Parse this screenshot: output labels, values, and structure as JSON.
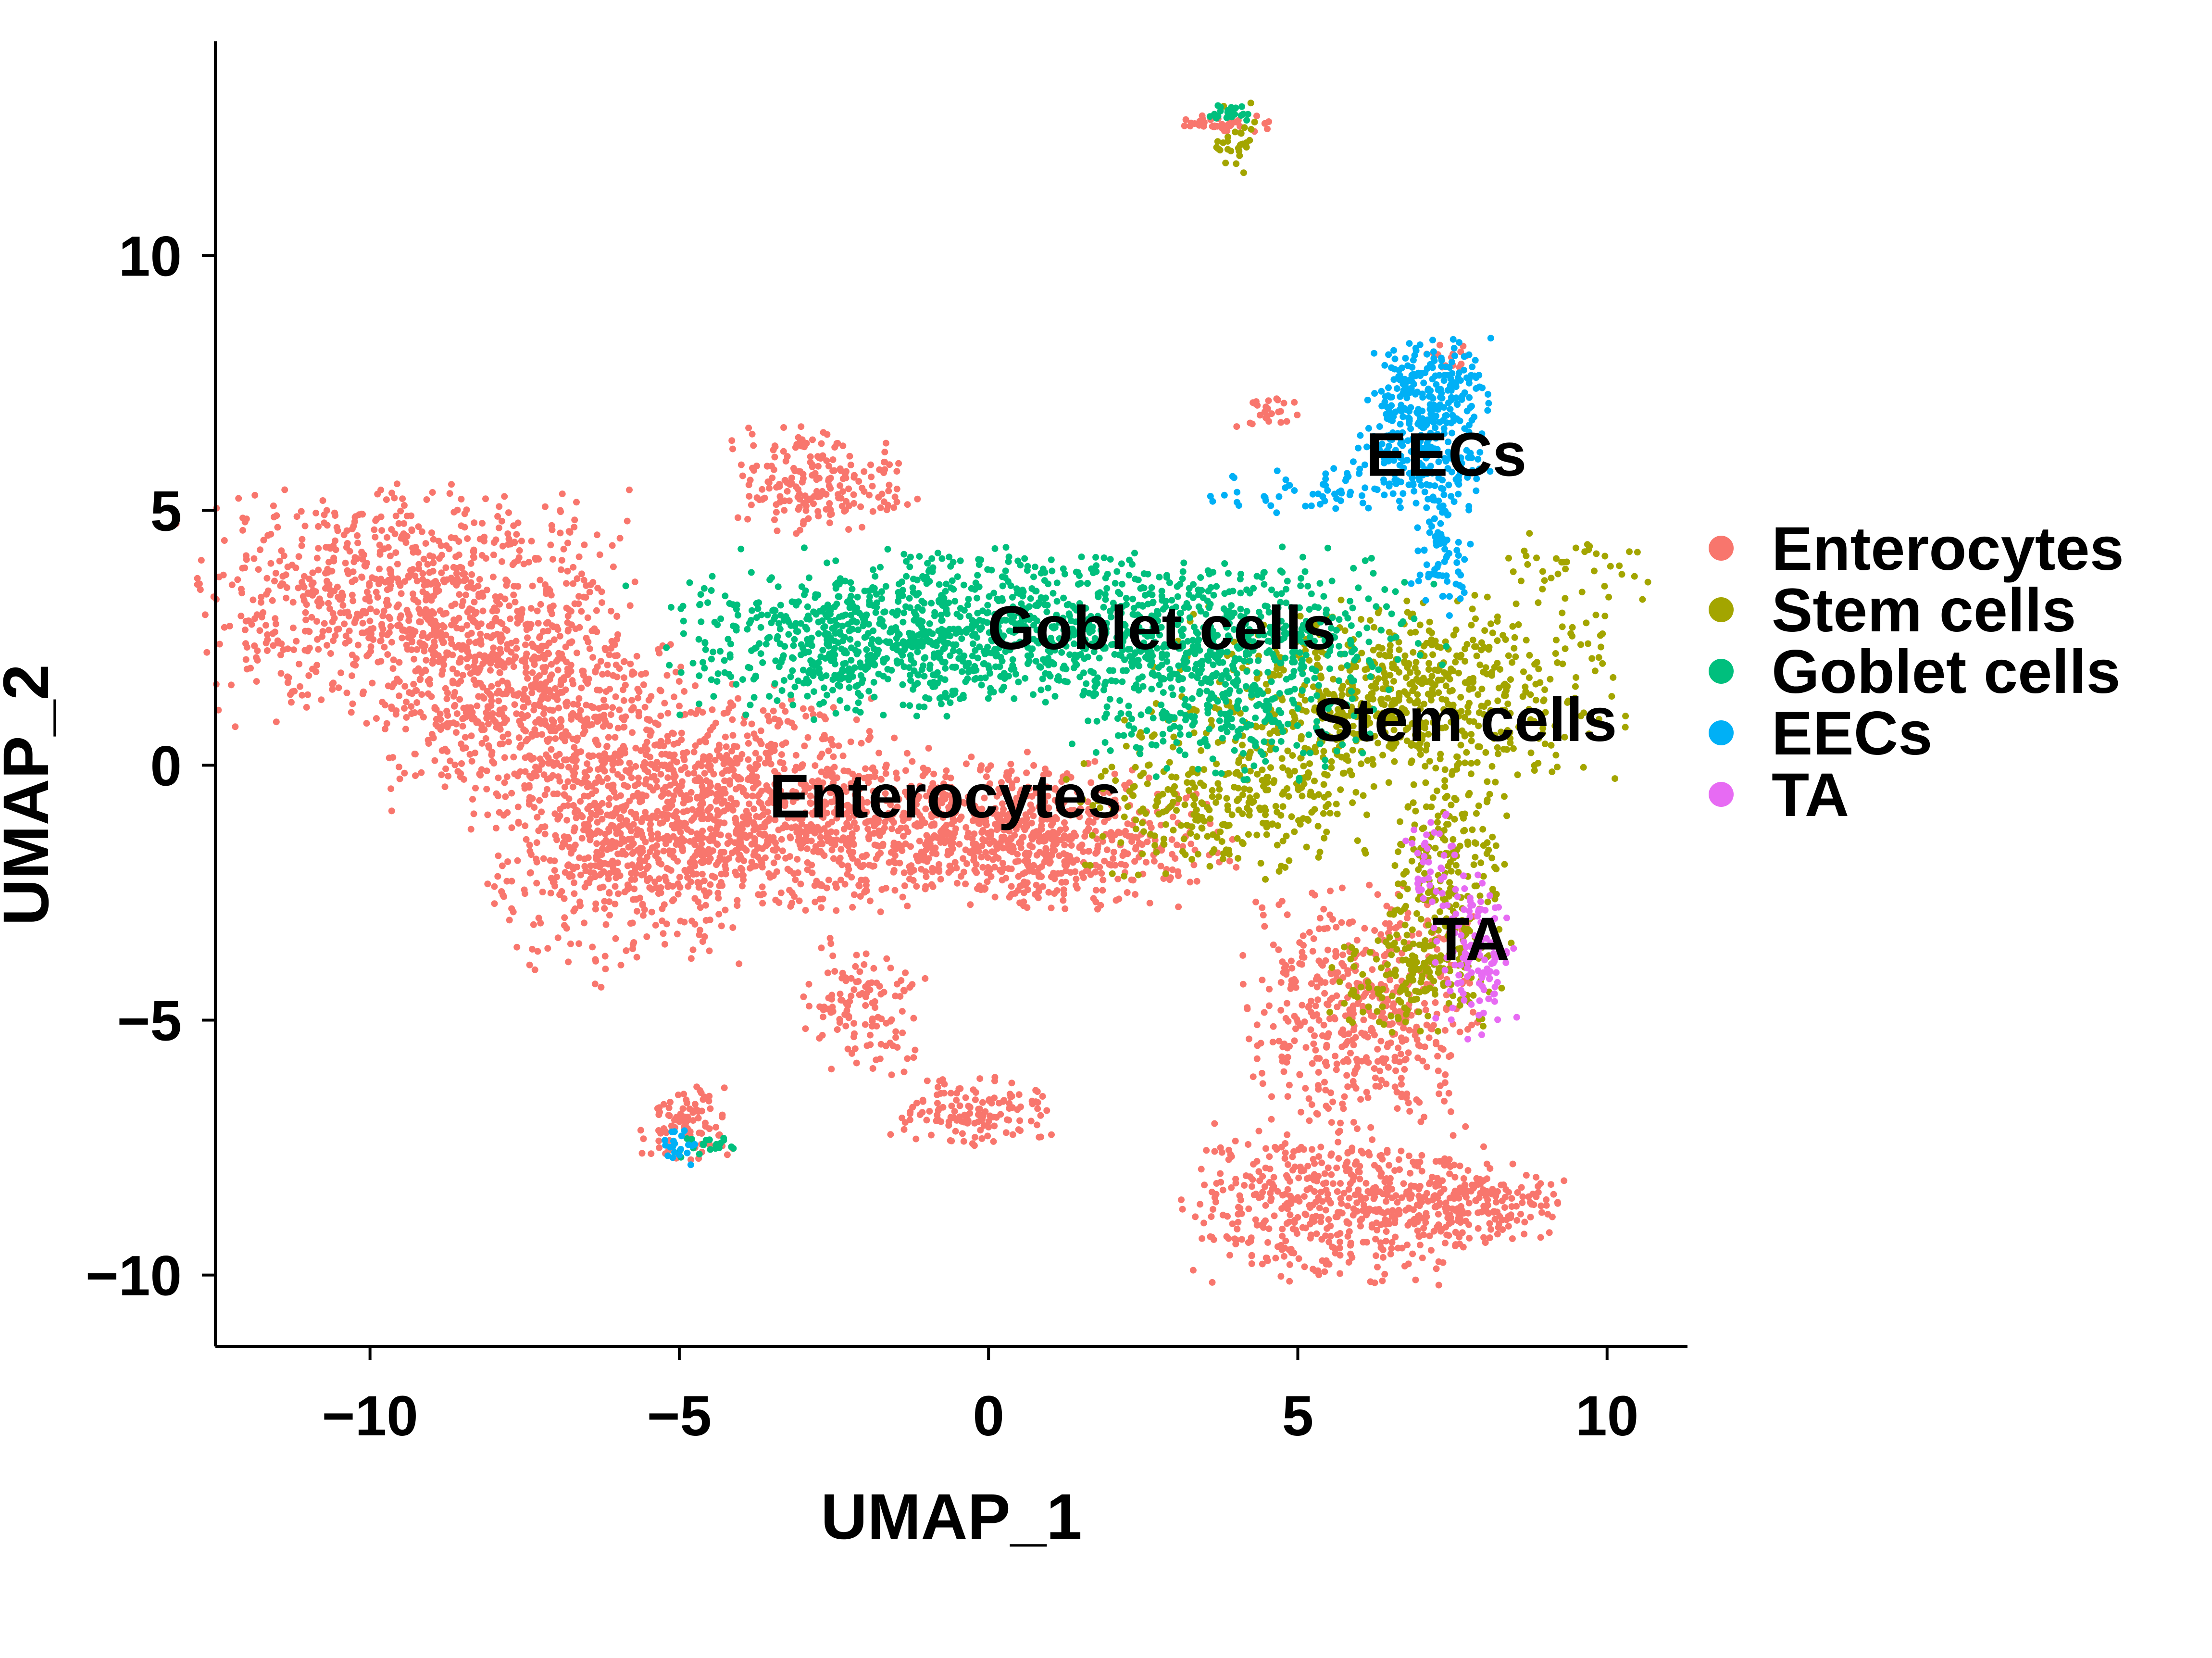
{
  "chart_data": {
    "type": "scatter",
    "title": "",
    "xlabel": "UMAP_1",
    "ylabel": "UMAP_2",
    "xlim": [
      -12.5,
      11.3
    ],
    "ylim": [
      -11.4,
      14.2
    ],
    "x_ticks": [
      -10,
      -5,
      0,
      5,
      10
    ],
    "x_tick_labels": [
      "−10",
      "−5",
      "0",
      "5",
      "10"
    ],
    "y_ticks": [
      -10,
      -5,
      0,
      5,
      10
    ],
    "y_tick_labels": [
      "−10",
      "−5",
      "0",
      "5",
      "10"
    ],
    "grid": false,
    "legend_position": "right",
    "series": [
      {
        "name": "Enterocytes",
        "color": "#F8766D",
        "regions": [
          {
            "cx": -9.3,
            "cy": 3.1,
            "rx": 2.0,
            "ry": 1.4,
            "n": 900
          },
          {
            "cx": -7.4,
            "cy": 1.2,
            "rx": 1.4,
            "ry": 1.4,
            "n": 600
          },
          {
            "cx": -6.0,
            "cy": -1.6,
            "rx": 1.2,
            "ry": 1.4,
            "n": 500
          },
          {
            "cx": -4.2,
            "cy": -0.6,
            "rx": 1.6,
            "ry": 1.3,
            "n": 600
          },
          {
            "cx": -1.5,
            "cy": -1.3,
            "rx": 2.2,
            "ry": 0.9,
            "n": 700
          },
          {
            "cx": 1.2,
            "cy": -1.5,
            "rx": 1.6,
            "ry": 0.8,
            "n": 400
          },
          {
            "cx": -2.7,
            "cy": 5.6,
            "rx": 0.9,
            "ry": 0.6,
            "n": 200
          },
          {
            "cx": -2.0,
            "cy": -4.8,
            "rx": 0.6,
            "ry": 0.9,
            "n": 120
          },
          {
            "cx": -0.2,
            "cy": -6.8,
            "rx": 0.8,
            "ry": 0.4,
            "n": 140
          },
          {
            "cx": -4.9,
            "cy": -7.0,
            "rx": 0.5,
            "ry": 0.5,
            "n": 90
          },
          {
            "cx": 6.0,
            "cy": -4.8,
            "rx": 1.1,
            "ry": 1.4,
            "n": 500
          },
          {
            "cx": 5.6,
            "cy": -8.6,
            "rx": 1.5,
            "ry": 0.9,
            "n": 500
          },
          {
            "cx": 7.9,
            "cy": -8.6,
            "rx": 0.8,
            "ry": 0.5,
            "n": 180
          },
          {
            "cx": 3.8,
            "cy": 12.6,
            "rx": 0.5,
            "ry": 0.1,
            "n": 40
          },
          {
            "cx": 4.5,
            "cy": 6.9,
            "rx": 0.3,
            "ry": 0.2,
            "n": 25
          },
          {
            "cx": 7.4,
            "cy": 8.0,
            "rx": 0.2,
            "ry": 0.2,
            "n": 15
          }
        ]
      },
      {
        "name": "Stem cells",
        "color": "#A3A500",
        "regions": [
          {
            "cx": 6.5,
            "cy": 1.4,
            "rx": 2.2,
            "ry": 1.1,
            "n": 700
          },
          {
            "cx": 3.7,
            "cy": -0.7,
            "rx": 1.4,
            "ry": 0.9,
            "n": 300
          },
          {
            "cx": 7.4,
            "cy": -2.2,
            "rx": 0.6,
            "ry": 1.3,
            "n": 220
          },
          {
            "cx": 6.9,
            "cy": -4.2,
            "rx": 0.8,
            "ry": 0.6,
            "n": 160
          },
          {
            "cx": 9.4,
            "cy": 3.8,
            "rx": 0.8,
            "ry": 0.5,
            "n": 40
          },
          {
            "cx": 4.0,
            "cy": 12.3,
            "rx": 0.2,
            "ry": 0.4,
            "n": 30
          }
        ]
      },
      {
        "name": "Goblet cells",
        "color": "#00BF7D",
        "regions": [
          {
            "cx": 1.3,
            "cy": 2.7,
            "rx": 3.5,
            "ry": 0.9,
            "n": 1100
          },
          {
            "cx": -2.1,
            "cy": 2.3,
            "rx": 1.8,
            "ry": 0.8,
            "n": 400
          },
          {
            "cx": 3.8,
            "cy": 1.2,
            "rx": 1.4,
            "ry": 0.9,
            "n": 300
          },
          {
            "cx": 3.9,
            "cy": 12.8,
            "rx": 0.2,
            "ry": 0.1,
            "n": 25
          },
          {
            "cx": -4.6,
            "cy": -7.4,
            "rx": 0.3,
            "ry": 0.2,
            "n": 20
          }
        ]
      },
      {
        "name": "EECs",
        "color": "#00B0F6",
        "regions": [
          {
            "cx": 7.1,
            "cy": 7.4,
            "rx": 0.6,
            "ry": 0.6,
            "n": 200
          },
          {
            "cx": 6.9,
            "cy": 6.1,
            "rx": 0.7,
            "ry": 0.6,
            "n": 180
          },
          {
            "cx": 7.3,
            "cy": 4.2,
            "rx": 0.3,
            "ry": 0.8,
            "n": 80
          },
          {
            "cx": 5.1,
            "cy": 5.4,
            "rx": 0.9,
            "ry": 0.3,
            "n": 50
          },
          {
            "cx": -5.0,
            "cy": -7.5,
            "rx": 0.2,
            "ry": 0.2,
            "n": 20
          }
        ]
      },
      {
        "name": "TA",
        "color": "#E76BF3",
        "regions": [
          {
            "cx": 7.9,
            "cy": -3.8,
            "rx": 0.4,
            "ry": 0.9,
            "n": 120
          },
          {
            "cx": 7.2,
            "cy": -1.8,
            "rx": 0.3,
            "ry": 0.6,
            "n": 40
          }
        ]
      }
    ],
    "cluster_labels": [
      {
        "text": "EECs",
        "x": 7.4,
        "y": 6.1
      },
      {
        "text": "Goblet cells",
        "x": 2.8,
        "y": 2.7
      },
      {
        "text": "Stem cells",
        "x": 7.7,
        "y": 0.9
      },
      {
        "text": "Enterocytes",
        "x": -0.7,
        "y": -0.6
      },
      {
        "text": "TA",
        "x": 7.8,
        "y": -3.4
      }
    ],
    "legend": [
      "Enterocytes",
      "Stem cells",
      "Goblet cells",
      "EECs",
      "TA"
    ]
  }
}
